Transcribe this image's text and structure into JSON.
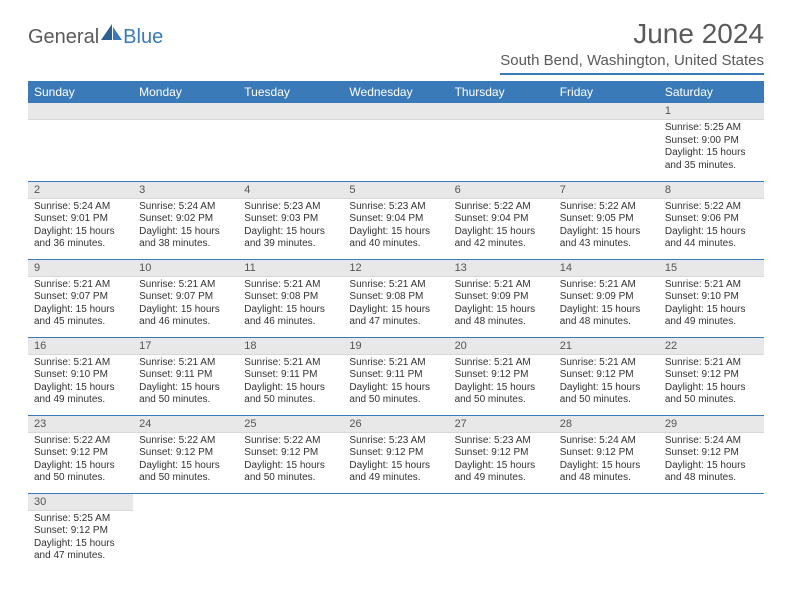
{
  "logo": {
    "part1": "General",
    "part2": "Blue"
  },
  "title": "June 2024",
  "location": "South Bend, Washington, United States",
  "colors": {
    "accent": "#3b7ab8",
    "header_text": "#5a5a5a",
    "daynum_bg": "#e8e8e8",
    "body_text": "#333333"
  },
  "weekdays": [
    "Sunday",
    "Monday",
    "Tuesday",
    "Wednesday",
    "Thursday",
    "Friday",
    "Saturday"
  ],
  "leading_blanks": 6,
  "days": [
    {
      "n": "1",
      "sunrise": "5:25 AM",
      "sunset": "9:00 PM",
      "daylight": "15 hours and 35 minutes."
    },
    {
      "n": "2",
      "sunrise": "5:24 AM",
      "sunset": "9:01 PM",
      "daylight": "15 hours and 36 minutes."
    },
    {
      "n": "3",
      "sunrise": "5:24 AM",
      "sunset": "9:02 PM",
      "daylight": "15 hours and 38 minutes."
    },
    {
      "n": "4",
      "sunrise": "5:23 AM",
      "sunset": "9:03 PM",
      "daylight": "15 hours and 39 minutes."
    },
    {
      "n": "5",
      "sunrise": "5:23 AM",
      "sunset": "9:04 PM",
      "daylight": "15 hours and 40 minutes."
    },
    {
      "n": "6",
      "sunrise": "5:22 AM",
      "sunset": "9:04 PM",
      "daylight": "15 hours and 42 minutes."
    },
    {
      "n": "7",
      "sunrise": "5:22 AM",
      "sunset": "9:05 PM",
      "daylight": "15 hours and 43 minutes."
    },
    {
      "n": "8",
      "sunrise": "5:22 AM",
      "sunset": "9:06 PM",
      "daylight": "15 hours and 44 minutes."
    },
    {
      "n": "9",
      "sunrise": "5:21 AM",
      "sunset": "9:07 PM",
      "daylight": "15 hours and 45 minutes."
    },
    {
      "n": "10",
      "sunrise": "5:21 AM",
      "sunset": "9:07 PM",
      "daylight": "15 hours and 46 minutes."
    },
    {
      "n": "11",
      "sunrise": "5:21 AM",
      "sunset": "9:08 PM",
      "daylight": "15 hours and 46 minutes."
    },
    {
      "n": "12",
      "sunrise": "5:21 AM",
      "sunset": "9:08 PM",
      "daylight": "15 hours and 47 minutes."
    },
    {
      "n": "13",
      "sunrise": "5:21 AM",
      "sunset": "9:09 PM",
      "daylight": "15 hours and 48 minutes."
    },
    {
      "n": "14",
      "sunrise": "5:21 AM",
      "sunset": "9:09 PM",
      "daylight": "15 hours and 48 minutes."
    },
    {
      "n": "15",
      "sunrise": "5:21 AM",
      "sunset": "9:10 PM",
      "daylight": "15 hours and 49 minutes."
    },
    {
      "n": "16",
      "sunrise": "5:21 AM",
      "sunset": "9:10 PM",
      "daylight": "15 hours and 49 minutes."
    },
    {
      "n": "17",
      "sunrise": "5:21 AM",
      "sunset": "9:11 PM",
      "daylight": "15 hours and 50 minutes."
    },
    {
      "n": "18",
      "sunrise": "5:21 AM",
      "sunset": "9:11 PM",
      "daylight": "15 hours and 50 minutes."
    },
    {
      "n": "19",
      "sunrise": "5:21 AM",
      "sunset": "9:11 PM",
      "daylight": "15 hours and 50 minutes."
    },
    {
      "n": "20",
      "sunrise": "5:21 AM",
      "sunset": "9:12 PM",
      "daylight": "15 hours and 50 minutes."
    },
    {
      "n": "21",
      "sunrise": "5:21 AM",
      "sunset": "9:12 PM",
      "daylight": "15 hours and 50 minutes."
    },
    {
      "n": "22",
      "sunrise": "5:21 AM",
      "sunset": "9:12 PM",
      "daylight": "15 hours and 50 minutes."
    },
    {
      "n": "23",
      "sunrise": "5:22 AM",
      "sunset": "9:12 PM",
      "daylight": "15 hours and 50 minutes."
    },
    {
      "n": "24",
      "sunrise": "5:22 AM",
      "sunset": "9:12 PM",
      "daylight": "15 hours and 50 minutes."
    },
    {
      "n": "25",
      "sunrise": "5:22 AM",
      "sunset": "9:12 PM",
      "daylight": "15 hours and 50 minutes."
    },
    {
      "n": "26",
      "sunrise": "5:23 AM",
      "sunset": "9:12 PM",
      "daylight": "15 hours and 49 minutes."
    },
    {
      "n": "27",
      "sunrise": "5:23 AM",
      "sunset": "9:12 PM",
      "daylight": "15 hours and 49 minutes."
    },
    {
      "n": "28",
      "sunrise": "5:24 AM",
      "sunset": "9:12 PM",
      "daylight": "15 hours and 48 minutes."
    },
    {
      "n": "29",
      "sunrise": "5:24 AM",
      "sunset": "9:12 PM",
      "daylight": "15 hours and 48 minutes."
    },
    {
      "n": "30",
      "sunrise": "5:25 AM",
      "sunset": "9:12 PM",
      "daylight": "15 hours and 47 minutes."
    }
  ],
  "labels": {
    "sunrise": "Sunrise: ",
    "sunset": "Sunset: ",
    "daylight": "Daylight: "
  }
}
